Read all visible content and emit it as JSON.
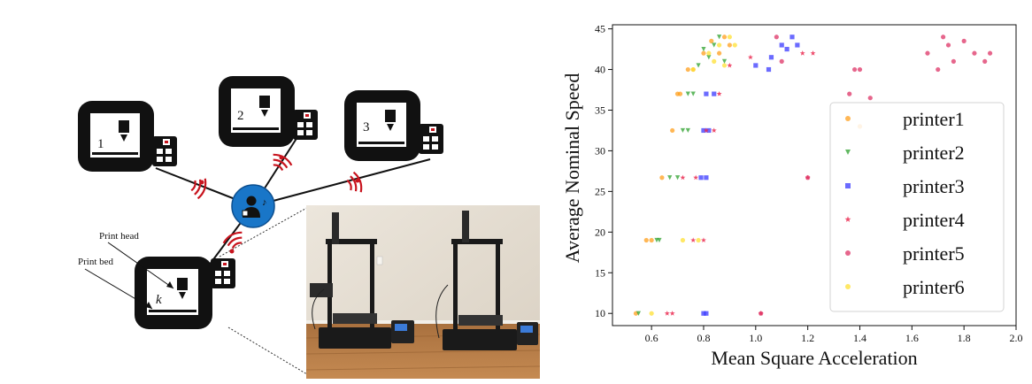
{
  "diagram": {
    "printer_labels": [
      "1",
      "2",
      "3",
      "k"
    ],
    "print_head_label": "Print head",
    "print_bed_label": "Print bed",
    "hub_icon": "person-with-music-note-icon",
    "signal_icon": "wireless-signal-icon",
    "module_icon": "controller-board-icon"
  },
  "photo": {
    "description_icon": "two-3d-printers-photo"
  },
  "chart_data": {
    "type": "scatter",
    "xlabel": "Mean Square Acceleration",
    "ylabel": "Average Nominal Speed",
    "xlim": [
      0.45,
      2.0
    ],
    "ylim": [
      8.5,
      45.5
    ],
    "xticks": [
      0.6,
      0.8,
      1.0,
      1.2,
      1.4,
      1.6,
      1.8,
      2.0
    ],
    "xtick_labels": [
      "0.6",
      "0.8",
      "1.0",
      "1.2",
      "1.4",
      "1.6",
      "1.8",
      "2.0"
    ],
    "yticks": [
      10,
      15,
      20,
      25,
      30,
      35,
      40,
      45
    ],
    "ytick_labels": [
      "10",
      "15",
      "20",
      "25",
      "30",
      "35",
      "40",
      "45"
    ],
    "grid": false,
    "legend_position": "right",
    "series": [
      {
        "name": "printer1",
        "marker": "circle",
        "color": "#ff9f1c",
        "points": [
          [
            0.54,
            10
          ],
          [
            0.58,
            19
          ],
          [
            0.6,
            19
          ],
          [
            0.64,
            26.7
          ],
          [
            0.68,
            32.5
          ],
          [
            0.7,
            37
          ],
          [
            0.71,
            37
          ],
          [
            0.74,
            40
          ],
          [
            0.76,
            40
          ],
          [
            0.8,
            42
          ],
          [
            0.83,
            43.5
          ],
          [
            0.86,
            42
          ],
          [
            0.88,
            44
          ],
          [
            0.9,
            43
          ],
          [
            1.4,
            33
          ]
        ]
      },
      {
        "name": "printer2",
        "marker": "triangle-down",
        "color": "#2ca02c",
        "points": [
          [
            0.55,
            10
          ],
          [
            0.62,
            19
          ],
          [
            0.63,
            19
          ],
          [
            0.67,
            26.7
          ],
          [
            0.7,
            26.7
          ],
          [
            0.72,
            32.5
          ],
          [
            0.74,
            32.5
          ],
          [
            0.74,
            37
          ],
          [
            0.76,
            37
          ],
          [
            0.78,
            40.5
          ],
          [
            0.8,
            42.5
          ],
          [
            0.82,
            41.5
          ],
          [
            0.84,
            43
          ],
          [
            0.86,
            44
          ],
          [
            0.88,
            41
          ]
        ]
      },
      {
        "name": "printer3",
        "marker": "square",
        "color": "#3a3aff",
        "points": [
          [
            0.8,
            10
          ],
          [
            0.81,
            10
          ],
          [
            0.79,
            26.7
          ],
          [
            0.81,
            26.7
          ],
          [
            0.8,
            32.5
          ],
          [
            0.82,
            32.5
          ],
          [
            0.81,
            37
          ],
          [
            0.84,
            37
          ],
          [
            1.0,
            40.5
          ],
          [
            1.06,
            41.5
          ],
          [
            1.1,
            43
          ],
          [
            1.12,
            42.5
          ],
          [
            1.14,
            44
          ],
          [
            1.16,
            43
          ],
          [
            1.05,
            40
          ]
        ]
      },
      {
        "name": "printer4",
        "marker": "star",
        "color": "#e8123c",
        "points": [
          [
            0.66,
            10
          ],
          [
            0.68,
            10
          ],
          [
            0.72,
            26.7
          ],
          [
            0.77,
            26.7
          ],
          [
            0.81,
            32.5
          ],
          [
            0.84,
            32.5
          ],
          [
            0.76,
            19
          ],
          [
            0.8,
            19
          ],
          [
            0.86,
            37
          ],
          [
            1.02,
            10
          ],
          [
            1.2,
            26.7
          ],
          [
            1.18,
            42
          ],
          [
            1.22,
            42
          ],
          [
            0.9,
            40.5
          ],
          [
            0.98,
            41.5
          ]
        ]
      },
      {
        "name": "printer5",
        "marker": "circle",
        "color": "#dd3366",
        "points": [
          [
            1.02,
            10
          ],
          [
            1.2,
            26.7
          ],
          [
            1.36,
            37
          ],
          [
            1.4,
            40
          ],
          [
            1.44,
            36.5
          ],
          [
            1.38,
            40
          ],
          [
            1.66,
            42
          ],
          [
            1.7,
            40
          ],
          [
            1.74,
            43
          ],
          [
            1.76,
            41
          ],
          [
            1.8,
            43.5
          ],
          [
            1.84,
            42
          ],
          [
            1.88,
            41
          ],
          [
            1.9,
            42
          ],
          [
            1.72,
            44
          ],
          [
            1.08,
            44
          ],
          [
            1.1,
            41
          ]
        ]
      },
      {
        "name": "printer6",
        "marker": "circle",
        "color": "#ffe033",
        "points": [
          [
            0.6,
            10
          ],
          [
            0.72,
            19
          ],
          [
            0.78,
            19
          ],
          [
            0.76,
            40
          ],
          [
            0.82,
            42
          ],
          [
            0.86,
            43
          ],
          [
            0.88,
            40.5
          ],
          [
            0.9,
            44
          ],
          [
            0.92,
            43
          ],
          [
            0.84,
            41
          ]
        ]
      }
    ]
  }
}
